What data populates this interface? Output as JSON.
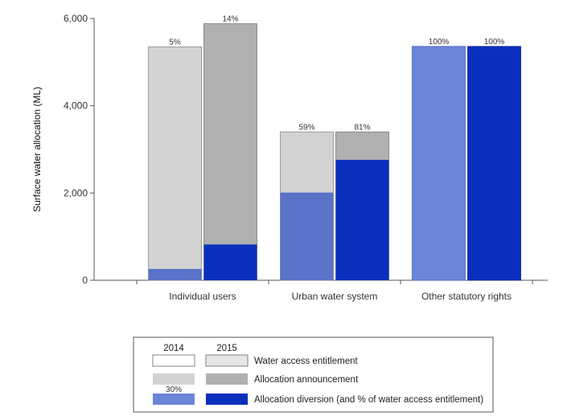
{
  "chart_data": {
    "type": "bar",
    "ylabel": "Surface water allocation (ML)",
    "xlabel": "",
    "ylim": [
      0,
      6000
    ],
    "yticks": [
      0,
      2000,
      4000,
      6000
    ],
    "ytick_labels": [
      "0",
      "2,000",
      "4,000",
      "6,000"
    ],
    "grid": false,
    "categories": [
      "Individual users",
      "Urban water system",
      "Other statutory rights"
    ],
    "years": [
      "2014",
      "2015"
    ],
    "series": [
      {
        "name": "Water access entitlement",
        "year": "2014",
        "values": [
          5350,
          3400,
          5360
        ]
      },
      {
        "name": "Allocation announcement",
        "year": "2014",
        "values": [
          5350,
          3400,
          5360
        ]
      },
      {
        "name": "Allocation diversion (and % of water access entitlement)",
        "year": "2014",
        "values": [
          260,
          2010,
          5360
        ]
      },
      {
        "name": "Water access entitlement",
        "year": "2015",
        "values": [
          5880,
          3400,
          5360
        ]
      },
      {
        "name": "Allocation announcement",
        "year": "2015",
        "values": [
          5880,
          3400,
          5360
        ]
      },
      {
        "name": "Allocation diversion (and % of water access entitlement)",
        "year": "2015",
        "values": [
          820,
          2760,
          5360
        ]
      }
    ],
    "percent_labels": {
      "2014": [
        "5%",
        "59%",
        "100%"
      ],
      "2015": [
        "14%",
        "81%",
        "100%"
      ]
    },
    "legend": {
      "placement": "bottom-center",
      "year_headers": [
        "2014",
        "2015"
      ],
      "entries": [
        "Water access entitlement",
        "Allocation announcement",
        "Allocation diversion (and % of water access entitlement)"
      ],
      "sample_pct": "30%"
    },
    "colors": {
      "entitlement": "#ffffff",
      "entitlement_2015": "#e6e6e6",
      "announcement_2014": "#d3d3d3",
      "announcement_2015": "#b0b0b0",
      "diversion_2014_partial": "#5a72c8",
      "diversion_2014_full": "#6b85d8",
      "diversion_2015": "#0a2fbd",
      "legend_diversion_2014": "#6b85d8"
    }
  }
}
